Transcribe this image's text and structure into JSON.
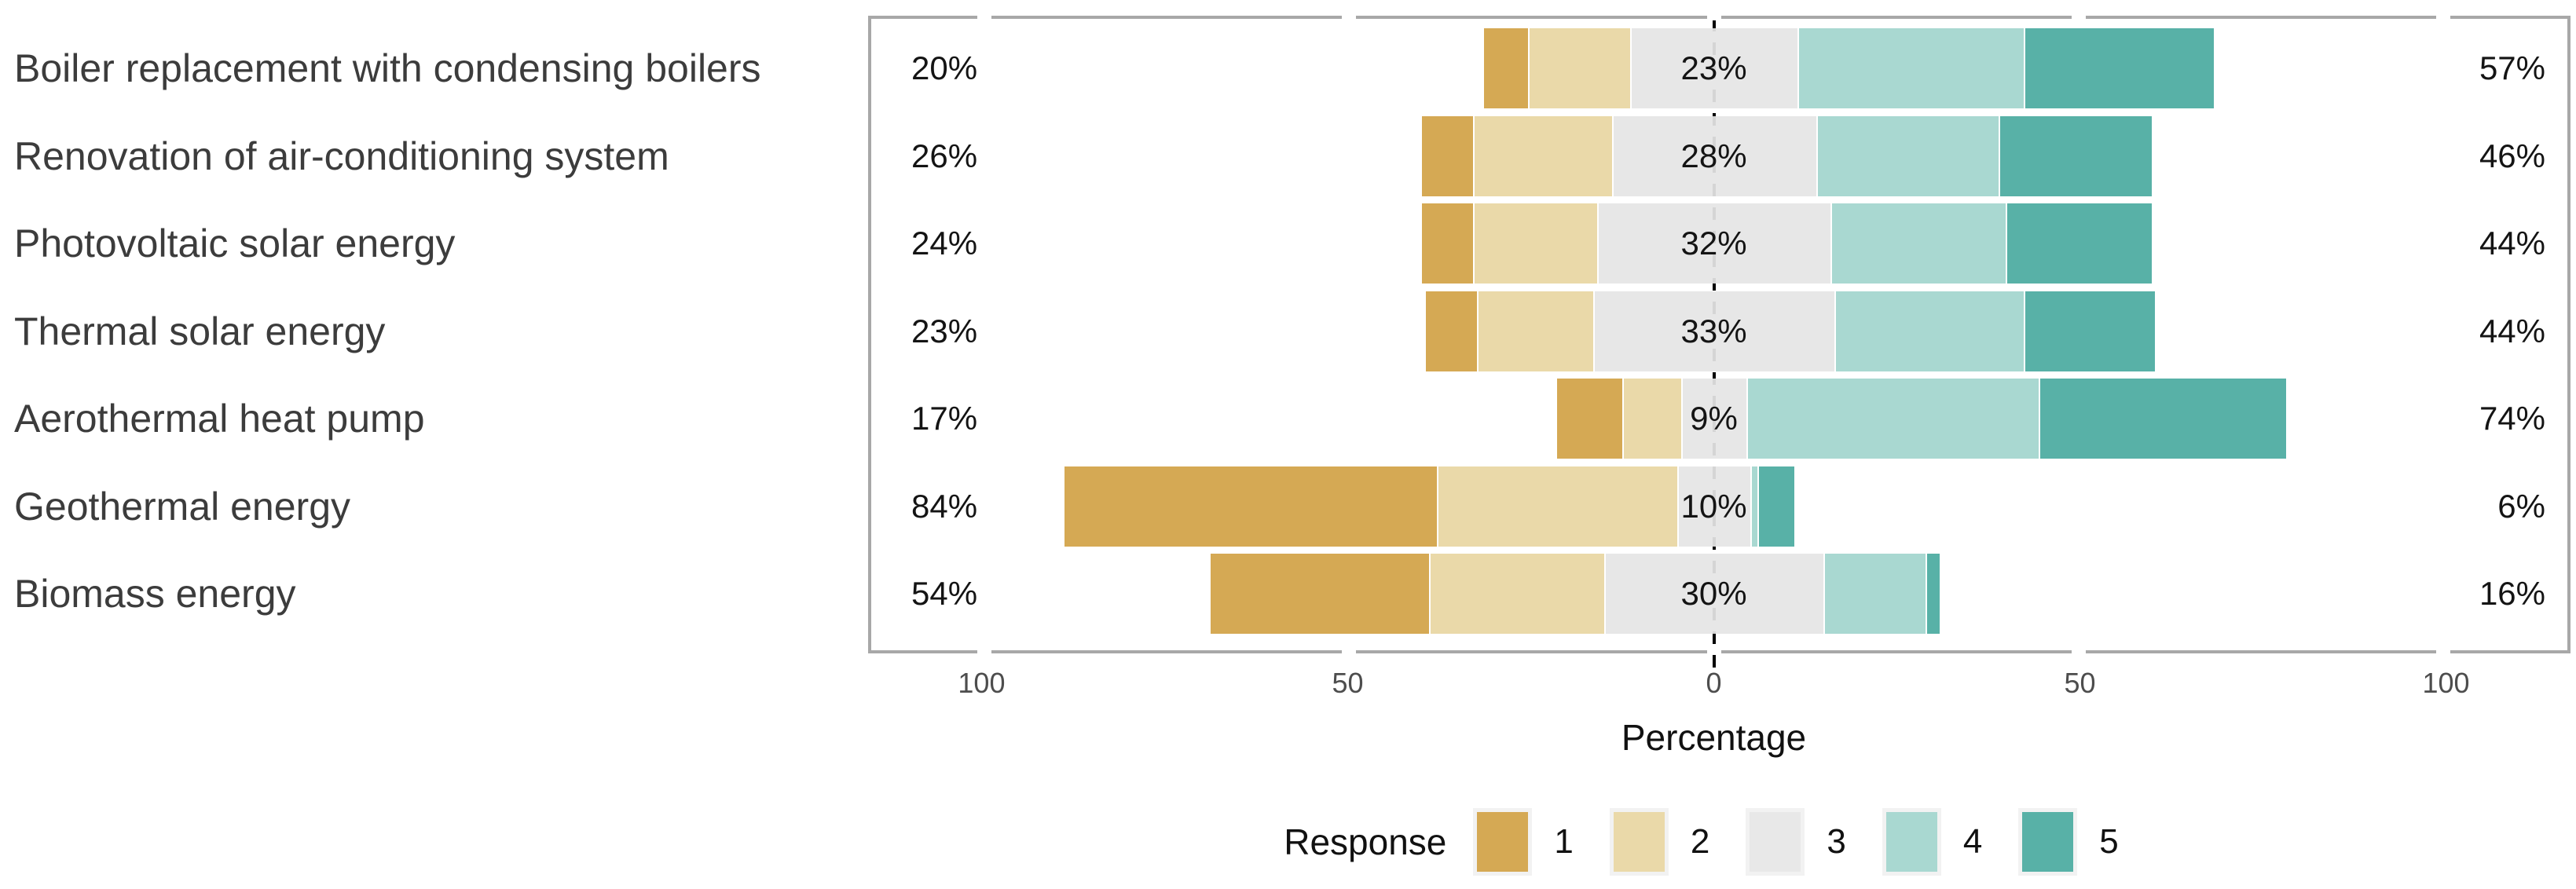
{
  "chart_data": {
    "type": "bar",
    "subtype": "diverging-stacked-likert",
    "title": "",
    "xlabel": "Percentage",
    "x_range": [
      -115.5,
      117
    ],
    "x_ticks": [
      -100,
      -50,
      0,
      50,
      100
    ],
    "x_tick_labels": [
      "100",
      "50",
      "0",
      "50",
      "100"
    ],
    "grid": false,
    "legend_position": "bottom",
    "legend_title": "Response",
    "legend_entries": [
      "1",
      "2",
      "3",
      "4",
      "5"
    ],
    "categories": [
      "Boiler replacement with condensing boilers",
      "Renovation of air-conditioning system",
      "Photovoltaic solar energy",
      "Thermal solar energy",
      "Aerothermal heat pump",
      "Geothermal energy",
      "Biomass energy"
    ],
    "series": [
      {
        "name": "1",
        "values": [
          6,
          7,
          7,
          7,
          9,
          51,
          30
        ]
      },
      {
        "name": "2",
        "values": [
          14,
          19,
          17,
          16,
          8,
          33,
          24
        ]
      },
      {
        "name": "3",
        "values": [
          23,
          28,
          32,
          33,
          9,
          10,
          30
        ]
      },
      {
        "name": "4",
        "values": [
          31,
          25,
          24,
          26,
          40,
          1,
          14
        ]
      },
      {
        "name": "5",
        "values": [
          26,
          21,
          20,
          18,
          34,
          5,
          2
        ]
      }
    ],
    "totals": {
      "left": [
        "20%",
        "26%",
        "24%",
        "23%",
        "17%",
        "84%",
        "54%"
      ],
      "center": [
        "23%",
        "28%",
        "32%",
        "33%",
        "9%",
        "10%",
        "30%"
      ],
      "right": [
        "57%",
        "46%",
        "44%",
        "44%",
        "74%",
        "6%",
        "16%"
      ]
    },
    "colors": {
      "response_1": "#D5A954",
      "response_2": "#EAD9A9",
      "response_3": "#E8E8E8",
      "response_4": "#A9D8D1",
      "response_5": "#58B1A7",
      "panel_border": "#A8A8A8",
      "zero_line": "#000000",
      "category_text": "#3C3C3C",
      "tick_text": "#4D4D4D",
      "label_text": "#141414"
    }
  }
}
